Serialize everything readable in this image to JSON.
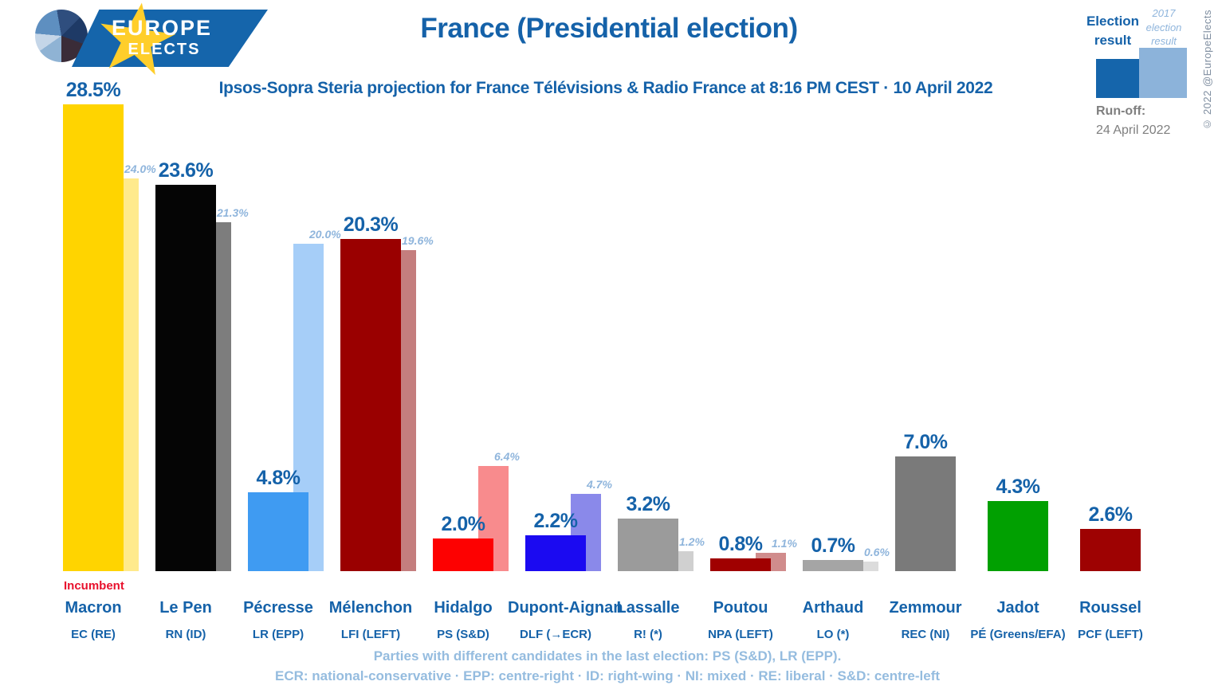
{
  "logo": {
    "line1": "EUROPE",
    "line2": "ELECTS"
  },
  "header": {
    "title": "France (Presidential election)",
    "subtitle": "Ipsos-Sopra Steria projection for France Télévisions & Radio France at 8:16 PM CEST · 10 April 2022"
  },
  "legend": {
    "current_label": "Election result",
    "previous_label": "2017 election result",
    "runoff_label": "Run-off:",
    "runoff_date": "24 April 2022",
    "copyright": "© 2022 @EuropeElects",
    "current_color": "#1565AB",
    "previous_color": "#8CB3DA"
  },
  "chart_data": {
    "type": "bar",
    "title": "France (Presidential election)",
    "unit": "%",
    "ylim": [
      0,
      30
    ],
    "grid": false,
    "legend_position": "top-right",
    "categories": [
      "Macron",
      "Le Pen",
      "Pécresse",
      "Mélenchon",
      "Hidalgo",
      "Dupont-Aignan",
      "Lassalle",
      "Poutou",
      "Arthaud",
      "Zemmour",
      "Jadot",
      "Roussel"
    ],
    "series": [
      {
        "name": "Election result",
        "values": [
          28.5,
          23.6,
          4.8,
          20.3,
          2.0,
          2.2,
          3.2,
          0.8,
          0.7,
          7.0,
          4.3,
          2.6
        ]
      },
      {
        "name": "2017 election result",
        "values": [
          24.0,
          21.3,
          20.0,
          19.6,
          6.4,
          4.7,
          1.2,
          1.1,
          0.6,
          null,
          null,
          null
        ]
      }
    ],
    "candidates": [
      {
        "name": "Macron",
        "party": "EC (RE)",
        "value": 28.5,
        "label": "28.5%",
        "prev": 24.0,
        "prev_label": "24.0%",
        "color": "#FFD400",
        "prev_color": "#FFEA8C",
        "note": "Incumbent"
      },
      {
        "name": "Le Pen",
        "party": "RN (ID)",
        "value": 23.6,
        "label": "23.6%",
        "prev": 21.3,
        "prev_label": "21.3%",
        "color": "#050505",
        "prev_color": "#7D7D7D"
      },
      {
        "name": "Pécresse",
        "party": "LR (EPP)",
        "value": 4.8,
        "label": "4.8%",
        "prev": 20.0,
        "prev_label": "20.0%",
        "color": "#3F9BF2",
        "prev_color": "#A6CEF8"
      },
      {
        "name": "Mélenchon",
        "party": "LFI (LEFT)",
        "value": 20.3,
        "label": "20.3%",
        "prev": 19.6,
        "prev_label": "19.6%",
        "color": "#9A0000",
        "prev_color": "#C47E7E"
      },
      {
        "name": "Hidalgo",
        "party": "PS (S&D)",
        "value": 2.0,
        "label": "2.0%",
        "prev": 6.4,
        "prev_label": "6.4%",
        "color": "#FD0101",
        "prev_color": "#F88B8D"
      },
      {
        "name": "Dupont-Aignan",
        "party": "DLF (→ECR)",
        "value": 2.2,
        "label": "2.2%",
        "prev": 4.7,
        "prev_label": "4.7%",
        "color": "#1B0AF1",
        "prev_color": "#8A89EA"
      },
      {
        "name": "Lassalle",
        "party": "R! (*)",
        "value": 3.2,
        "label": "3.2%",
        "prev": 1.2,
        "prev_label": "1.2%",
        "color": "#9B9B9B",
        "prev_color": "#D0D0D0"
      },
      {
        "name": "Poutou",
        "party": "NPA (LEFT)",
        "value": 0.8,
        "label": "0.8%",
        "prev": 1.1,
        "prev_label": "1.1%",
        "color": "#A00000",
        "prev_color": "#D08C8C"
      },
      {
        "name": "Arthaud",
        "party": "LO (*)",
        "value": 0.7,
        "label": "0.7%",
        "prev": 0.6,
        "prev_label": "0.6%",
        "color": "#A5A5A5",
        "prev_color": "#DCDCDC"
      },
      {
        "name": "Zemmour",
        "party": "REC (NI)",
        "value": 7.0,
        "label": "7.0%",
        "prev": null,
        "prev_label": null,
        "color": "#7A7A7A",
        "prev_color": null
      },
      {
        "name": "Jadot",
        "party": "PÉ (Greens/EFA)",
        "value": 4.3,
        "label": "4.3%",
        "prev": null,
        "prev_label": null,
        "color": "#01A001",
        "prev_color": null
      },
      {
        "name": "Roussel",
        "party": "PCF (LEFT)",
        "value": 2.6,
        "label": "2.6%",
        "prev": null,
        "prev_label": null,
        "color": "#9E0202",
        "prev_color": null
      }
    ]
  },
  "footer": {
    "line1": "Parties with different candidates in the last election: PS (S&D), LR (EPP).",
    "line2": "ECR: national-conservative · EPP: centre-right · ID: right-wing · NI: mixed · RE: liberal · S&D: centre-left"
  }
}
